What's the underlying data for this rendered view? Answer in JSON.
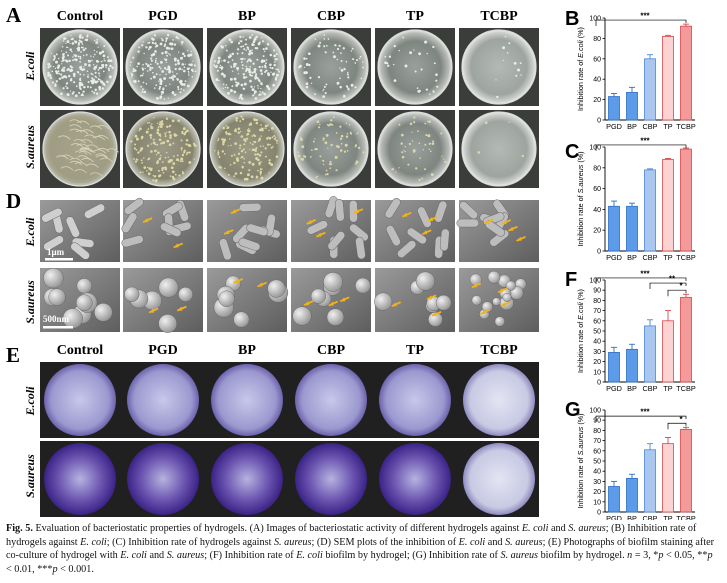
{
  "panels": {
    "A": {
      "letter": "A",
      "groups": [
        "Control",
        "PGD",
        "BP",
        "CBP",
        "TP",
        "TCBP"
      ],
      "rows": [
        "E.coli",
        "S.aureus"
      ]
    },
    "D": {
      "letter": "D",
      "rows": [
        "E.coli",
        "S.aureus"
      ],
      "scale_bars": [
        "1μm",
        "500nm"
      ]
    },
    "E": {
      "letter": "E",
      "groups": [
        "Control",
        "PGD",
        "BP",
        "CBP",
        "TP",
        "TCBP"
      ],
      "rows": [
        "E.coli",
        "S.aureus"
      ]
    }
  },
  "colors": {
    "blue_fill": "#aac8ef",
    "blue_dark": "#4a86d8",
    "red_fill": "#f49a9a",
    "red_dark": "#d94848",
    "plate_gray": "#8a8f8b",
    "sem_gray": "#7d7d7d",
    "crystal_violet": "#6a56a8"
  },
  "chart_data": [
    {
      "panel": "B",
      "type": "bar",
      "categories": [
        "PGD",
        "BP",
        "CBP",
        "TP",
        "TCBP"
      ],
      "values": [
        23,
        27,
        60,
        82,
        92
      ],
      "errors": [
        3,
        5,
        4,
        1,
        2
      ],
      "ylabel_prefix": "Inhibition rate of ",
      "ylabel_italic": "E.coli",
      "ylabel_suffix": " (%)",
      "ylim": [
        0,
        100
      ],
      "yticks": [
        0,
        20,
        40,
        60,
        80,
        100
      ],
      "significance": [
        "***"
      ]
    },
    {
      "panel": "C",
      "type": "bar",
      "categories": [
        "PGD",
        "BP",
        "CBP",
        "TP",
        "TCBP"
      ],
      "values": [
        43,
        43,
        78,
        88,
        98
      ],
      "errors": [
        5,
        3,
        1,
        1,
        1
      ],
      "ylabel_prefix": "Inhibition rate of ",
      "ylabel_italic": "S.aureus",
      "ylabel_suffix": " (%)",
      "ylim": [
        0,
        100
      ],
      "yticks": [
        0,
        20,
        40,
        60,
        80,
        100
      ],
      "significance": [
        "***"
      ]
    },
    {
      "panel": "F",
      "type": "bar",
      "categories": [
        "PGD",
        "BP",
        "CBP",
        "TP",
        "TCBP"
      ],
      "values": [
        29,
        32,
        55,
        60,
        83
      ],
      "errors": [
        5,
        5,
        6,
        10,
        3
      ],
      "ylabel_prefix": "Inhibition rate of ",
      "ylabel_italic": "E.coli",
      "ylabel_suffix": " (%)",
      "ylim": [
        0,
        100
      ],
      "yticks": [
        0,
        10,
        20,
        30,
        40,
        50,
        60,
        70,
        80,
        90,
        100
      ],
      "significance": [
        "***",
        "**",
        "*"
      ]
    },
    {
      "panel": "G",
      "type": "bar",
      "categories": [
        "PGD",
        "BP",
        "CBP",
        "TP",
        "TCBP"
      ],
      "values": [
        25,
        33,
        61,
        67,
        81
      ],
      "errors": [
        5,
        4,
        6,
        6,
        2
      ],
      "ylabel_prefix": "Inhibition rate of ",
      "ylabel_italic": "S.aureus",
      "ylabel_suffix": " (%)",
      "ylim": [
        0,
        100
      ],
      "yticks": [
        0,
        10,
        20,
        30,
        40,
        50,
        60,
        70,
        80,
        90,
        100
      ],
      "significance": [
        "***",
        "*"
      ]
    }
  ],
  "caption": {
    "label": "Fig. 5.",
    "t1": "  Evaluation of bacteriostatic properties of hydrogels. (A) Images of bacteriostatic activity of different hydrogels against ",
    "i1": "E. coli",
    "t2": " and ",
    "i2": "S. aureus",
    "t3": "; (B) Inhibition rate of hydrogels against ",
    "i3": "E. coli",
    "t4": "; (C) Inhibition rate of hydrogels against ",
    "i4": "S. aureus",
    "t5": "; (D) SEM plots of the inhibition of ",
    "i5": "E. coli",
    "t6": " and ",
    "i6": "S. aureus",
    "t7": "; (E) Photographs of biofilm staining after co-culture of hydrogel with ",
    "i7": "E. coli",
    "t8": " and ",
    "i8": "S. aureus",
    "t9": "; (F) Inhibition rate of ",
    "i9": "E. coli",
    "t10": " biofilm by hydrogel; (G) Inhibition rate of ",
    "i10": "S. aureus",
    "t11": " biofilm by hydrogel. ",
    "i11": "n",
    "t12": " = 3, *",
    "i12": "p",
    "t13": " < 0.05, **",
    "i13": "p",
    "t14": " < 0.01, ***",
    "i14": "p",
    "t15": " < 0.001."
  }
}
